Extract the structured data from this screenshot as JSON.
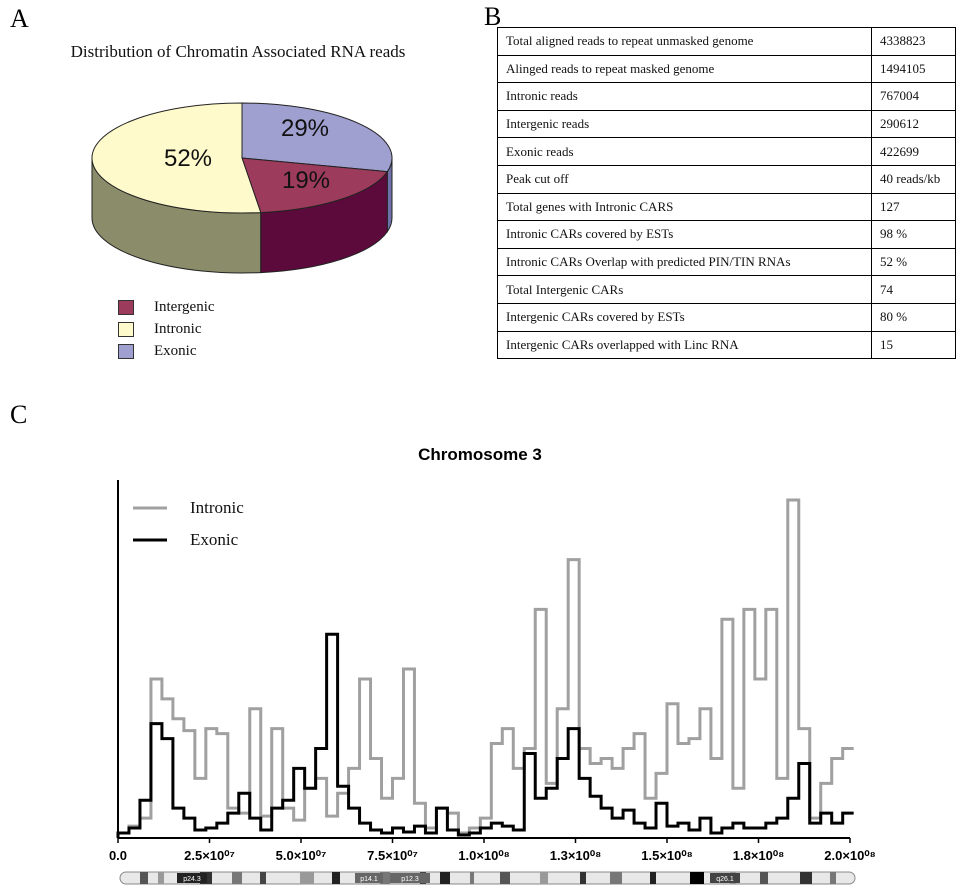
{
  "panels": {
    "a": "A",
    "b": "B",
    "c": "C"
  },
  "pie": {
    "title": "Distribution of Chromatin Associated RNA reads",
    "chart_data": {
      "type": "pie",
      "title": "Distribution of Chromatin Associated RNA reads",
      "slices": [
        {
          "name": "Exonic",
          "value": 29,
          "label": "29%",
          "color": "#9f9fd0",
          "side": "#6f72a9"
        },
        {
          "name": "Intergenic",
          "value": 19,
          "label": "19%",
          "color": "#9c3b5b",
          "side": "#5c0a3b"
        },
        {
          "name": "Intronic",
          "value": 52,
          "label": "52%",
          "color": "#fffacc",
          "side": "#8b8d6a"
        }
      ],
      "legend": [
        "Intergenic",
        "Intronic",
        "Exonic"
      ],
      "legend_position": "bottom-left"
    }
  },
  "table": {
    "rows": [
      {
        "label": "Total aligned  reads  to  repeat unmasked genome",
        "value": "4338823"
      },
      {
        "label": "Alinged reads to repeat masked   genome",
        "value": "1494105"
      },
      {
        "label": "Intronic reads",
        "value": "767004"
      },
      {
        "label": "Intergenic reads",
        "value": "290612"
      },
      {
        "label": "Exonic reads",
        "value": "422699"
      },
      {
        "label": "Peak cut  off",
        "value": "40 reads/kb"
      },
      {
        "label": "Total genes with   Intronic CARS",
        "value": "127"
      },
      {
        "label": " Intronic CARs  covered by ESTs",
        "value": "98 %"
      },
      {
        "label": "Intronic CARs  Overlap  with  predicted  PIN/TIN RNAs",
        "value": "52  %"
      },
      {
        "label": "Total Intergenic  CARs",
        "value": "74"
      },
      {
        "label": "Intergenic CARs covered by ESTs",
        "value": "80 %"
      },
      {
        "label": "Intergenic CARs overlapped with Linc RNA",
        "value": "15"
      }
    ]
  },
  "chart_data": {
    "type": "line",
    "title": "Chromosome 3",
    "xlim": [
      0,
      200000000
    ],
    "xticks": [
      {
        "value": 0,
        "label": "0.0"
      },
      {
        "value": 25000000,
        "label": "2.5×10⁰⁷"
      },
      {
        "value": 50000000,
        "label": "5.0×10⁰⁷"
      },
      {
        "value": 75000000,
        "label": "7.5×10⁰⁷"
      },
      {
        "value": 100000000,
        "label": "1.0×10⁰⁸"
      },
      {
        "value": 125000000,
        "label": "1.3×10⁰⁸"
      },
      {
        "value": 150000000,
        "label": "1.5×10⁰⁸"
      },
      {
        "value": 175000000,
        "label": "1.8×10⁰⁸"
      },
      {
        "value": 200000000,
        "label": "2.0×10⁰⁸"
      }
    ],
    "ylim": [
      0,
      340
    ],
    "legend_position": "top-left",
    "ideogram_labels": [
      "p24.3",
      "p14.1",
      "p12.3",
      "q26.1"
    ],
    "x": [
      0,
      3,
      6,
      9,
      12,
      15,
      18,
      21,
      24,
      27,
      30,
      33,
      36,
      39,
      42,
      45,
      48,
      51,
      54,
      57,
      60,
      63,
      66,
      69,
      72,
      75,
      78,
      81,
      84,
      87,
      90,
      93,
      96,
      99,
      102,
      105,
      108,
      111,
      114,
      117,
      120,
      123,
      126,
      129,
      132,
      135,
      138,
      141,
      144,
      147,
      150,
      153,
      156,
      159,
      162,
      165,
      168,
      171,
      174,
      177,
      180,
      183,
      186,
      189,
      192,
      195,
      198
    ],
    "series": [
      {
        "name": "Intronic",
        "color": "#a0a0a0",
        "values": [
          5,
          12,
          20,
          160,
          140,
          120,
          108,
          60,
          110,
          105,
          30,
          25,
          130,
          22,
          110,
          30,
          18,
          50,
          60,
          22,
          45,
          70,
          160,
          80,
          40,
          60,
          170,
          35,
          10,
          30,
          25,
          5,
          10,
          20,
          95,
          110,
          70,
          90,
          230,
          55,
          130,
          280,
          90,
          75,
          80,
          70,
          90,
          105,
          40,
          65,
          135,
          95,
          100,
          130,
          80,
          220,
          50,
          230,
          160,
          230,
          60,
          340,
          110,
          20,
          55,
          80,
          90
        ]
      },
      {
        "name": "Exonic",
        "color": "#000000",
        "values": [
          5,
          10,
          38,
          115,
          100,
          30,
          20,
          8,
          10,
          15,
          25,
          45,
          20,
          8,
          30,
          38,
          70,
          50,
          90,
          205,
          52,
          30,
          15,
          8,
          5,
          10,
          6,
          12,
          5,
          30,
          8,
          3,
          5,
          10,
          15,
          12,
          8,
          85,
          40,
          50,
          80,
          110,
          60,
          42,
          30,
          20,
          28,
          15,
          10,
          35,
          12,
          15,
          8,
          20,
          5,
          10,
          15,
          10,
          10,
          15,
          20,
          40,
          75,
          15,
          25,
          15,
          25
        ]
      }
    ]
  }
}
